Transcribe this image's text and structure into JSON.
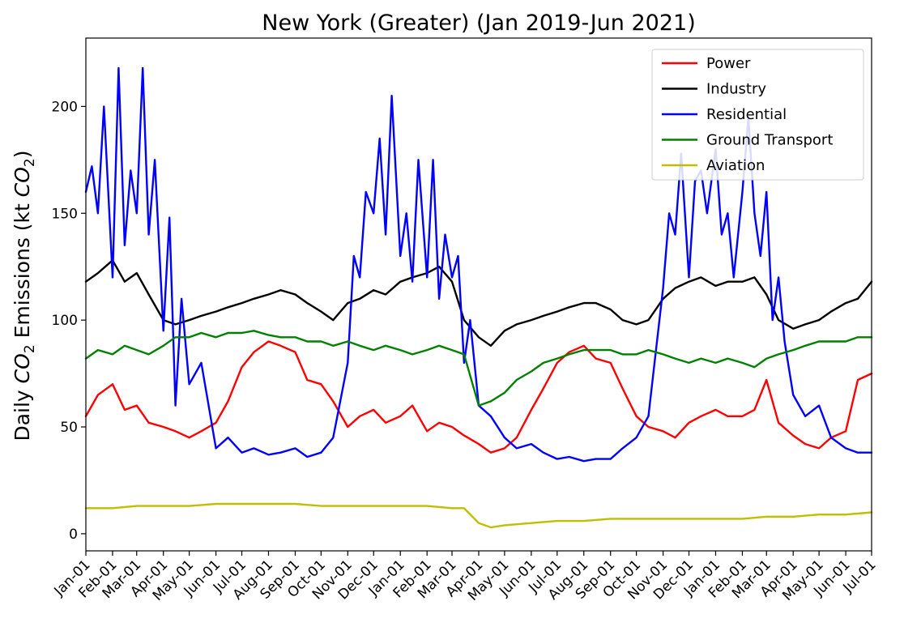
{
  "chart_data": {
    "type": "line",
    "title": "New York (Greater)  (Jan 2019-Jun 2021)",
    "ylabel": "Daily CO2 Emissions (kt CO2)",
    "ylabel_parts": [
      "Daily ",
      "CO",
      "2",
      " Emissions (kt ",
      "CO",
      "2",
      ")"
    ],
    "xlabel": "",
    "ylim": [
      -8,
      232
    ],
    "yticks": [
      0,
      50,
      100,
      150,
      200
    ],
    "x_range": [
      "2019-01-01",
      "2021-07-01"
    ],
    "xtick_dates": [
      "2019-01-01",
      "2019-02-01",
      "2019-03-01",
      "2019-04-01",
      "2019-05-01",
      "2019-06-01",
      "2019-07-01",
      "2019-08-01",
      "2019-09-01",
      "2019-10-01",
      "2019-11-01",
      "2019-12-01",
      "2020-01-01",
      "2020-02-01",
      "2020-03-01",
      "2020-04-01",
      "2020-05-01",
      "2020-06-01",
      "2020-07-01",
      "2020-08-01",
      "2020-09-01",
      "2020-10-01",
      "2020-11-01",
      "2020-12-01",
      "2021-01-01",
      "2021-02-01",
      "2021-03-01",
      "2021-04-01",
      "2021-05-01",
      "2021-06-01",
      "2021-07-01"
    ],
    "xtick_labels": [
      "Jan-01",
      "Feb-01",
      "Mar-01",
      "Apr-01",
      "May-01",
      "Jun-01",
      "Jul-01",
      "Aug-01",
      "Sep-01",
      "Oct-01",
      "Nov-01",
      "Dec-01",
      "Jan-01",
      "Feb-01",
      "Mar-01",
      "Apr-01",
      "May-01",
      "Jun-01",
      "Jul-01",
      "Aug-01",
      "Sep-01",
      "Oct-01",
      "Nov-01",
      "Dec-01",
      "Jan-01",
      "Feb-01",
      "Mar-01",
      "Apr-01",
      "May-01",
      "Jun-01",
      "Jul-01"
    ],
    "grid": false,
    "legend_position": "top-right",
    "series": [
      {
        "name": "Power",
        "color": "#ff0000",
        "x": [
          "2019-01-01",
          "2019-01-15",
          "2019-02-01",
          "2019-02-15",
          "2019-03-01",
          "2019-03-15",
          "2019-04-01",
          "2019-04-15",
          "2019-05-01",
          "2019-05-15",
          "2019-06-01",
          "2019-06-15",
          "2019-07-01",
          "2019-07-15",
          "2019-08-01",
          "2019-08-15",
          "2019-09-01",
          "2019-09-15",
          "2019-10-01",
          "2019-10-15",
          "2019-11-01",
          "2019-11-15",
          "2019-12-01",
          "2019-12-15",
          "2020-01-01",
          "2020-01-15",
          "2020-02-01",
          "2020-02-15",
          "2020-03-01",
          "2020-03-15",
          "2020-04-01",
          "2020-04-15",
          "2020-05-01",
          "2020-05-15",
          "2020-06-01",
          "2020-06-15",
          "2020-07-01",
          "2020-07-15",
          "2020-08-01",
          "2020-08-15",
          "2020-09-01",
          "2020-09-15",
          "2020-10-01",
          "2020-10-15",
          "2020-11-01",
          "2020-11-15",
          "2020-12-01",
          "2020-12-15",
          "2021-01-01",
          "2021-01-15",
          "2021-02-01",
          "2021-02-15",
          "2021-03-01",
          "2021-03-15",
          "2021-04-01",
          "2021-04-15",
          "2021-05-01",
          "2021-05-15",
          "2021-06-01",
          "2021-06-15",
          "2021-07-01"
        ],
        "values": [
          55,
          65,
          70,
          58,
          60,
          52,
          50,
          48,
          45,
          48,
          52,
          62,
          78,
          85,
          90,
          88,
          85,
          72,
          70,
          62,
          50,
          55,
          58,
          52,
          55,
          60,
          48,
          52,
          50,
          46,
          42,
          38,
          40,
          45,
          58,
          68,
          80,
          85,
          88,
          82,
          80,
          68,
          55,
          50,
          48,
          45,
          52,
          55,
          58,
          55,
          55,
          58,
          72,
          52,
          46,
          42,
          40,
          45,
          48,
          72,
          75
        ]
      },
      {
        "name": "Industry",
        "color": "#000000",
        "x": [
          "2019-01-01",
          "2019-01-15",
          "2019-02-01",
          "2019-02-15",
          "2019-03-01",
          "2019-03-15",
          "2019-04-01",
          "2019-04-15",
          "2019-05-01",
          "2019-05-15",
          "2019-06-01",
          "2019-06-15",
          "2019-07-01",
          "2019-07-15",
          "2019-08-01",
          "2019-08-15",
          "2019-09-01",
          "2019-09-15",
          "2019-10-01",
          "2019-10-15",
          "2019-11-01",
          "2019-11-15",
          "2019-12-01",
          "2019-12-15",
          "2020-01-01",
          "2020-01-15",
          "2020-02-01",
          "2020-02-15",
          "2020-03-01",
          "2020-03-15",
          "2020-04-01",
          "2020-04-15",
          "2020-05-01",
          "2020-05-15",
          "2020-06-01",
          "2020-06-15",
          "2020-07-01",
          "2020-07-15",
          "2020-08-01",
          "2020-08-15",
          "2020-09-01",
          "2020-09-15",
          "2020-10-01",
          "2020-10-15",
          "2020-11-01",
          "2020-11-15",
          "2020-12-01",
          "2020-12-15",
          "2021-01-01",
          "2021-01-15",
          "2021-02-01",
          "2021-02-15",
          "2021-03-01",
          "2021-03-15",
          "2021-04-01",
          "2021-04-15",
          "2021-05-01",
          "2021-05-15",
          "2021-06-01",
          "2021-06-15",
          "2021-07-01"
        ],
        "values": [
          118,
          122,
          128,
          118,
          122,
          112,
          100,
          98,
          100,
          102,
          104,
          106,
          108,
          110,
          112,
          114,
          112,
          108,
          104,
          100,
          108,
          110,
          114,
          112,
          118,
          120,
          122,
          125,
          118,
          100,
          92,
          88,
          95,
          98,
          100,
          102,
          104,
          106,
          108,
          108,
          105,
          100,
          98,
          100,
          110,
          115,
          118,
          120,
          116,
          118,
          118,
          120,
          112,
          100,
          96,
          98,
          100,
          104,
          108,
          110,
          118
        ]
      },
      {
        "name": "Residential",
        "color": "#0000ff",
        "x": [
          "2019-01-01",
          "2019-01-08",
          "2019-01-15",
          "2019-01-22",
          "2019-02-01",
          "2019-02-08",
          "2019-02-15",
          "2019-02-22",
          "2019-03-01",
          "2019-03-08",
          "2019-03-15",
          "2019-03-22",
          "2019-04-01",
          "2019-04-08",
          "2019-04-15",
          "2019-04-22",
          "2019-05-01",
          "2019-05-15",
          "2019-06-01",
          "2019-06-15",
          "2019-07-01",
          "2019-07-15",
          "2019-08-01",
          "2019-08-15",
          "2019-09-01",
          "2019-09-15",
          "2019-10-01",
          "2019-10-15",
          "2019-11-01",
          "2019-11-08",
          "2019-11-15",
          "2019-11-22",
          "2019-12-01",
          "2019-12-08",
          "2019-12-15",
          "2019-12-22",
          "2020-01-01",
          "2020-01-08",
          "2020-01-15",
          "2020-01-22",
          "2020-02-01",
          "2020-02-08",
          "2020-02-15",
          "2020-02-22",
          "2020-03-01",
          "2020-03-08",
          "2020-03-15",
          "2020-03-22",
          "2020-04-01",
          "2020-04-15",
          "2020-05-01",
          "2020-05-15",
          "2020-06-01",
          "2020-06-15",
          "2020-07-01",
          "2020-07-15",
          "2020-08-01",
          "2020-08-15",
          "2020-09-01",
          "2020-09-15",
          "2020-10-01",
          "2020-10-15",
          "2020-11-01",
          "2020-11-08",
          "2020-11-15",
          "2020-11-22",
          "2020-12-01",
          "2020-12-08",
          "2020-12-15",
          "2020-12-22",
          "2021-01-01",
          "2021-01-08",
          "2021-01-15",
          "2021-01-22",
          "2021-02-01",
          "2021-02-08",
          "2021-02-15",
          "2021-02-22",
          "2021-03-01",
          "2021-03-08",
          "2021-03-15",
          "2021-03-22",
          "2021-04-01",
          "2021-04-15",
          "2021-05-01",
          "2021-05-15",
          "2021-06-01",
          "2021-06-15",
          "2021-07-01"
        ],
        "values": [
          160,
          172,
          150,
          200,
          120,
          218,
          135,
          170,
          150,
          218,
          140,
          175,
          95,
          148,
          60,
          110,
          70,
          80,
          40,
          45,
          38,
          40,
          37,
          38,
          40,
          36,
          38,
          45,
          80,
          130,
          120,
          160,
          150,
          185,
          140,
          205,
          130,
          150,
          118,
          175,
          120,
          175,
          110,
          140,
          120,
          130,
          80,
          100,
          60,
          55,
          45,
          40,
          42,
          38,
          35,
          36,
          34,
          35,
          35,
          40,
          45,
          55,
          115,
          150,
          140,
          178,
          120,
          165,
          170,
          150,
          180,
          140,
          150,
          120,
          160,
          195,
          150,
          130,
          160,
          100,
          120,
          90,
          65,
          55,
          60,
          45,
          40,
          38,
          38
        ]
      },
      {
        "name": "Ground Transport",
        "color": "#008000",
        "x": [
          "2019-01-01",
          "2019-01-15",
          "2019-02-01",
          "2019-02-15",
          "2019-03-01",
          "2019-03-15",
          "2019-04-01",
          "2019-04-15",
          "2019-05-01",
          "2019-05-15",
          "2019-06-01",
          "2019-06-15",
          "2019-07-01",
          "2019-07-15",
          "2019-08-01",
          "2019-08-15",
          "2019-09-01",
          "2019-09-15",
          "2019-10-01",
          "2019-10-15",
          "2019-11-01",
          "2019-11-15",
          "2019-12-01",
          "2019-12-15",
          "2020-01-01",
          "2020-01-15",
          "2020-02-01",
          "2020-02-15",
          "2020-03-01",
          "2020-03-15",
          "2020-04-01",
          "2020-04-15",
          "2020-05-01",
          "2020-05-15",
          "2020-06-01",
          "2020-06-15",
          "2020-07-01",
          "2020-07-15",
          "2020-08-01",
          "2020-08-15",
          "2020-09-01",
          "2020-09-15",
          "2020-10-01",
          "2020-10-15",
          "2020-11-01",
          "2020-11-15",
          "2020-12-01",
          "2020-12-15",
          "2021-01-01",
          "2021-01-15",
          "2021-02-01",
          "2021-02-15",
          "2021-03-01",
          "2021-03-15",
          "2021-04-01",
          "2021-04-15",
          "2021-05-01",
          "2021-05-15",
          "2021-06-01",
          "2021-06-15",
          "2021-07-01"
        ],
        "values": [
          82,
          86,
          84,
          88,
          86,
          84,
          88,
          92,
          92,
          94,
          92,
          94,
          94,
          95,
          93,
          92,
          92,
          90,
          90,
          88,
          90,
          88,
          86,
          88,
          86,
          84,
          86,
          88,
          86,
          84,
          60,
          62,
          66,
          72,
          76,
          80,
          82,
          84,
          86,
          86,
          86,
          84,
          84,
          86,
          84,
          82,
          80,
          82,
          80,
          82,
          80,
          78,
          82,
          84,
          86,
          88,
          90,
          90,
          90,
          92,
          92
        ]
      },
      {
        "name": "Aviation",
        "color": "#bfbf00",
        "x": [
          "2019-01-01",
          "2019-02-01",
          "2019-03-01",
          "2019-04-01",
          "2019-05-01",
          "2019-06-01",
          "2019-07-01",
          "2019-08-01",
          "2019-09-01",
          "2019-10-01",
          "2019-11-01",
          "2019-12-01",
          "2020-01-01",
          "2020-02-01",
          "2020-03-01",
          "2020-03-15",
          "2020-04-01",
          "2020-04-15",
          "2020-05-01",
          "2020-06-01",
          "2020-07-01",
          "2020-08-01",
          "2020-09-01",
          "2020-10-01",
          "2020-11-01",
          "2020-12-01",
          "2021-01-01",
          "2021-02-01",
          "2021-03-01",
          "2021-04-01",
          "2021-05-01",
          "2021-06-01",
          "2021-07-01"
        ],
        "values": [
          12,
          12,
          13,
          13,
          13,
          14,
          14,
          14,
          14,
          13,
          13,
          13,
          13,
          13,
          12,
          12,
          5,
          3,
          4,
          5,
          6,
          6,
          7,
          7,
          7,
          7,
          7,
          7,
          8,
          8,
          9,
          9,
          10
        ]
      }
    ]
  }
}
